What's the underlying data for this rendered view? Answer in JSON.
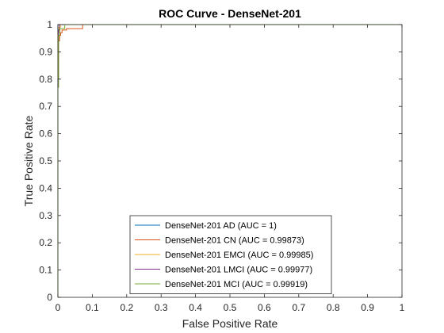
{
  "chart_data": {
    "type": "line",
    "title": "ROC Curve - DenseNet-201",
    "xlabel": "False Positive Rate",
    "ylabel": "True Positive Rate",
    "xlim": [
      0,
      1
    ],
    "ylim": [
      0,
      1
    ],
    "xticks": [
      0,
      0.1,
      0.2,
      0.3,
      0.4,
      0.5,
      0.6,
      0.7,
      0.8,
      0.9,
      1
    ],
    "xtick_labels": [
      "0",
      "0.1",
      "0.2",
      "0.3",
      "0.4",
      "0.5",
      "0.6",
      "0.7",
      "0.8",
      "0.9",
      "1"
    ],
    "yticks": [
      0,
      0.1,
      0.2,
      0.3,
      0.4,
      0.5,
      0.6,
      0.7,
      0.8,
      0.9,
      1
    ],
    "ytick_labels": [
      "0",
      "0.1",
      "0.2",
      "0.3",
      "0.4",
      "0.5",
      "0.6",
      "0.7",
      "0.8",
      "0.9",
      "1"
    ],
    "grid": false,
    "legend_position": "bottom-center",
    "series": [
      {
        "name": "DenseNet-201 AD (AUC = 1)",
        "color": "#0072BD",
        "points": [
          [
            0,
            0
          ],
          [
            0,
            1
          ],
          [
            1,
            1
          ]
        ]
      },
      {
        "name": "DenseNet-201 CN (AUC = 0.99873)",
        "color": "#D95319",
        "points": [
          [
            0,
            0
          ],
          [
            0,
            0.85
          ],
          [
            0.002,
            0.85
          ],
          [
            0.002,
            0.94
          ],
          [
            0.005,
            0.94
          ],
          [
            0.005,
            0.96
          ],
          [
            0.008,
            0.96
          ],
          [
            0.008,
            0.97
          ],
          [
            0.012,
            0.97
          ],
          [
            0.012,
            0.98
          ],
          [
            0.025,
            0.98
          ],
          [
            0.025,
            0.985
          ],
          [
            0.072,
            0.985
          ],
          [
            0.072,
            1
          ],
          [
            1,
            1
          ]
        ]
      },
      {
        "name": "DenseNet-201 EMCI (AUC = 0.99985)",
        "color": "#EDB120",
        "points": [
          [
            0,
            0
          ],
          [
            0,
            0.97
          ],
          [
            0.003,
            0.97
          ],
          [
            0.003,
            0.99
          ],
          [
            0.007,
            0.99
          ],
          [
            0.007,
            1
          ],
          [
            1,
            1
          ]
        ]
      },
      {
        "name": "DenseNet-201 LMCI (AUC = 0.99977)",
        "color": "#7E2F8E",
        "points": [
          [
            0,
            0
          ],
          [
            0,
            0.8
          ],
          [
            0.002,
            0.8
          ],
          [
            0.002,
            0.98
          ],
          [
            0.005,
            0.98
          ],
          [
            0.005,
            1
          ],
          [
            1,
            1
          ]
        ]
      },
      {
        "name": "DenseNet-201 MCI (AUC = 0.99919)",
        "color": "#77AC30",
        "points": [
          [
            0,
            0
          ],
          [
            0,
            0.77
          ],
          [
            0.002,
            0.77
          ],
          [
            0.002,
            0.96
          ],
          [
            0.006,
            0.96
          ],
          [
            0.006,
            0.985
          ],
          [
            0.02,
            0.985
          ],
          [
            0.02,
            1
          ],
          [
            1,
            1
          ]
        ]
      }
    ]
  }
}
